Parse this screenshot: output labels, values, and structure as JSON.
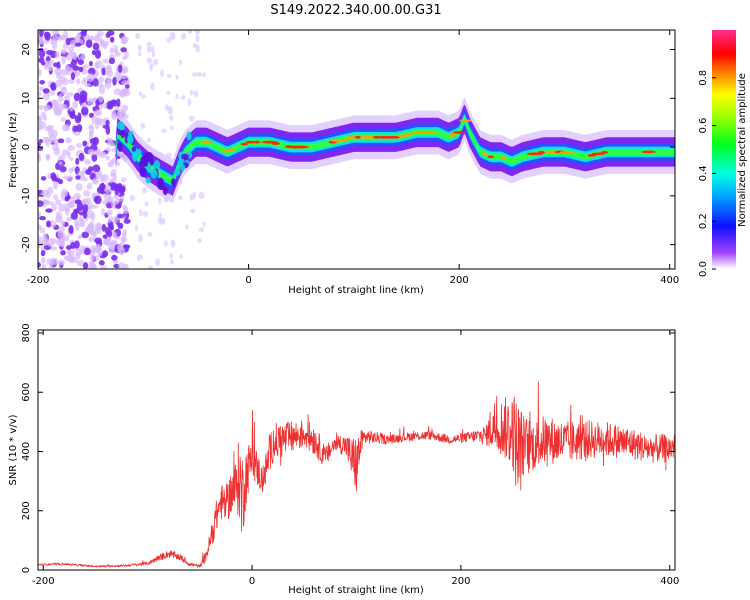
{
  "chart_data": [
    {
      "type": "heatmap",
      "title": "S149.2022.340.00.00.G31",
      "xlabel": "Height of straight line (km)",
      "ylabel": "Frequency (Hz)",
      "xlim": [
        -200,
        405
      ],
      "ylim": [
        -25,
        24
      ],
      "x_ticks": [
        "-200",
        "0",
        "200",
        "400"
      ],
      "y_ticks": [
        "20",
        "10",
        "0",
        "-10",
        "-20"
      ],
      "colorbar": {
        "label": "Normalized spectral amplitude",
        "range": [
          0,
          1
        ],
        "ticks": [
          "0.0",
          "0.2",
          "0.4",
          "0.6",
          "0.8"
        ]
      },
      "ridge": {
        "x": [
          -125,
          -115,
          -105,
          -95,
          -88,
          -80,
          -72,
          -65,
          -60,
          -50,
          -40,
          -30,
          -20,
          -10,
          0,
          20,
          40,
          60,
          80,
          100,
          120,
          140,
          160,
          180,
          190,
          200,
          205,
          210,
          220,
          230,
          240,
          250,
          260,
          280,
          300,
          320,
          340,
          360,
          380,
          400
        ],
        "freq": [
          3,
          1,
          -2,
          -4,
          -5,
          -6,
          -7,
          -3,
          -1,
          1,
          1,
          0,
          -1,
          0,
          1,
          1,
          0,
          0,
          1,
          2,
          2,
          2,
          3,
          3,
          2,
          3,
          6,
          3,
          -1,
          -2,
          -2,
          -3,
          -2,
          -1,
          -1,
          -2,
          -1,
          -1,
          -1,
          -1
        ]
      }
    },
    {
      "type": "line",
      "xlabel": "Height of straight line (km)",
      "ylabel": "SNR (10 * v/v)",
      "xlim": [
        -205,
        405
      ],
      "ylim": [
        0,
        810
      ],
      "x_ticks": [
        "-200",
        "0",
        "200",
        "400"
      ],
      "y_ticks": [
        "0",
        "200",
        "400",
        "600",
        "800"
      ],
      "series": [
        {
          "color": "#ee3030",
          "x": [
            -205,
            -180,
            -150,
            -120,
            -100,
            -90,
            -80,
            -70,
            -60,
            -50,
            -45,
            -40,
            -35,
            -30,
            -25,
            -20,
            -15,
            -12,
            -10,
            -5,
            0,
            10,
            20,
            30,
            40,
            50,
            60,
            70,
            80,
            90,
            95,
            100,
            105,
            110,
            130,
            150,
            170,
            190,
            210,
            225,
            230,
            240,
            250,
            255,
            260,
            270,
            280,
            300,
            320,
            340,
            360,
            380,
            400,
            405
          ],
          "y": [
            18,
            20,
            12,
            15,
            22,
            40,
            55,
            45,
            20,
            12,
            40,
            95,
            170,
            230,
            220,
            260,
            280,
            320,
            240,
            330,
            380,
            300,
            430,
            440,
            450,
            460,
            440,
            380,
            430,
            420,
            380,
            350,
            440,
            450,
            440,
            450,
            455,
            440,
            450,
            455,
            490,
            480,
            470,
            400,
            420,
            420,
            440,
            430,
            440,
            440,
            430,
            410,
            410,
            420
          ],
          "amp": [
            5,
            6,
            5,
            6,
            10,
            18,
            22,
            20,
            12,
            8,
            30,
            60,
            90,
            100,
            110,
            120,
            160,
            250,
            260,
            150,
            120,
            80,
            110,
            100,
            90,
            80,
            90,
            60,
            50,
            60,
            120,
            170,
            60,
            40,
            25,
            25,
            25,
            25,
            30,
            60,
            150,
            160,
            230,
            300,
            180,
            140,
            140,
            120,
            110,
            100,
            90,
            80,
            80,
            70
          ]
        }
      ]
    }
  ]
}
